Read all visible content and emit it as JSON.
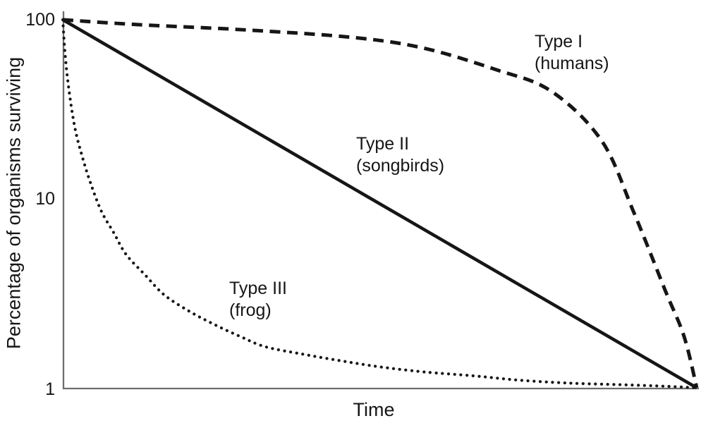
{
  "chart_data": {
    "type": "line",
    "xlabel": "Time",
    "ylabel": "Percentage of organisms surviving",
    "y_scale": "log",
    "y_tick_labels": [
      "100",
      "10",
      "1"
    ],
    "ylim": [
      1,
      100
    ],
    "xlim": [
      0,
      100
    ],
    "x_ticks": [],
    "grid": false,
    "legend_position": "inline-annotations",
    "series": [
      {
        "name": "Type I",
        "sublabel": "(humans)",
        "style": "dashed",
        "x": [
          0,
          12,
          29,
          46,
          57,
          68,
          77,
          85,
          90,
          95,
          98,
          100
        ],
        "y": [
          100,
          94,
          88,
          80,
          70,
          54,
          41,
          22,
          9.1,
          3.4,
          1.9,
          1
        ]
      },
      {
        "name": "Type II",
        "sublabel": "(songbirds)",
        "style": "solid",
        "x": [
          0,
          100
        ],
        "y": [
          100,
          1
        ]
      },
      {
        "name": "Type III",
        "sublabel": "(frog)",
        "style": "dotted",
        "x": [
          0,
          0.4,
          1,
          1.9,
          3,
          4.4,
          6.1,
          8,
          10,
          13,
          16,
          20,
          24,
          28,
          32,
          38,
          44,
          50,
          57,
          65,
          72,
          80,
          88,
          95,
          100
        ],
        "y": [
          100,
          63,
          41,
          26,
          18.4,
          12.9,
          9.1,
          7.0,
          5.3,
          4.1,
          3.2,
          2.6,
          2.2,
          1.9,
          1.67,
          1.52,
          1.4,
          1.3,
          1.22,
          1.16,
          1.1,
          1.06,
          1.04,
          1.02,
          1.0
        ]
      }
    ],
    "colors": {
      "curve": "#161616",
      "axis": "#6e6e6e",
      "text": "#161616",
      "background": "#ffffff"
    }
  }
}
